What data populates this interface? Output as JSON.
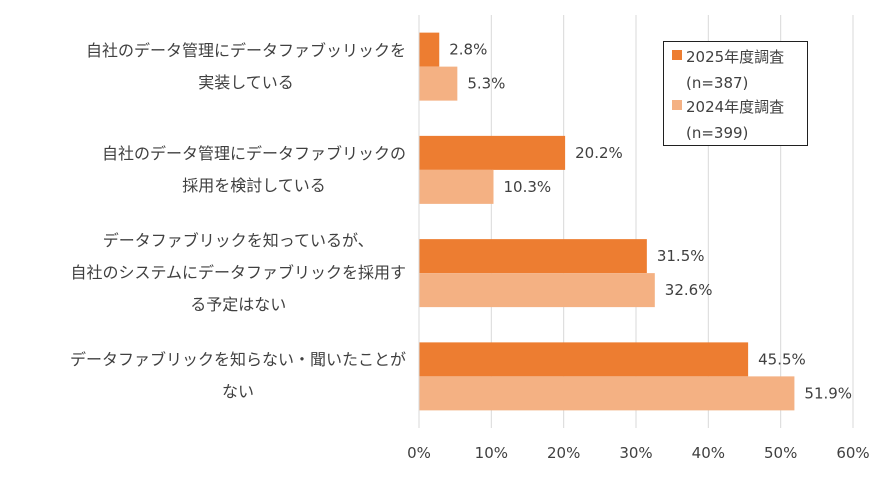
{
  "chart_data": {
    "type": "bar",
    "orientation": "horizontal",
    "categories": [
      [
        "自社のデータ管理にデータファブッリックを",
        "実装している"
      ],
      [
        "自社のデータ管理にデータファブリックの",
        "採用を検討している"
      ],
      [
        "データファブリックを知っているが、",
        "自社のシステムにデータファブリックを採用す",
        "る予定はない"
      ],
      [
        "データファブリックを知らない・聞いたことが",
        "ない"
      ]
    ],
    "series": [
      {
        "name": "2025年度調査(n=387)",
        "legend_lines": [
          "2025年度調査",
          "(n=387)"
        ],
        "color": "#ED7D31",
        "values": [
          2.8,
          20.2,
          31.5,
          45.5
        ],
        "labels": [
          "2.8%",
          "20.2%",
          "31.5%",
          "45.5%"
        ]
      },
      {
        "name": "2024年度調査(n=399)",
        "legend_lines": [
          "2024年度調査",
          "(n=399)"
        ],
        "color": "#F4B183",
        "values": [
          5.3,
          10.3,
          32.6,
          51.9
        ],
        "labels": [
          "5.3%",
          "10.3%",
          "32.6%",
          "51.9%"
        ]
      }
    ],
    "xlim": [
      0,
      60
    ],
    "xticks": [
      "0%",
      "10%",
      "20%",
      "30%",
      "40%",
      "50%",
      "60%"
    ],
    "grid": true,
    "legend_position": "top-right"
  }
}
